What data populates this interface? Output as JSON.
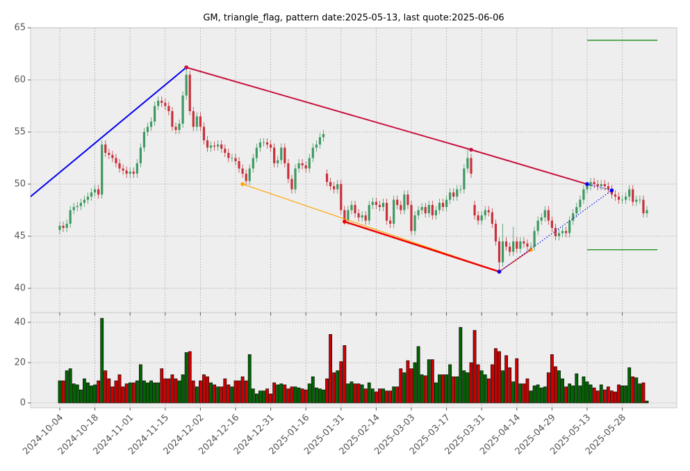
{
  "chart_data": [
    {
      "type": "candlestick",
      "title": "GM, triangle_flag, pattern date:2025-05-13, last quote:2025-06-06",
      "open": [
        45.6,
        46.0,
        45.8,
        46.2,
        47.5,
        47.8,
        47.9,
        48.2,
        48.5,
        48.8,
        49.2,
        49.5,
        49.0,
        53.8,
        53.0,
        52.8,
        52.5,
        52.0,
        51.5,
        51.3,
        51.0,
        51.2,
        51.0,
        52.0,
        53.5,
        55.0,
        55.5,
        56.0,
        57.5,
        58.0,
        57.8,
        57.5,
        57.0,
        55.5,
        55.2,
        55.8,
        58.5,
        60.5,
        57.0,
        55.5,
        56.5,
        55.5,
        54.2,
        53.5,
        53.7,
        53.6,
        53.8,
        53.4,
        53.0,
        52.5,
        52.5,
        52.2,
        51.5,
        51.0,
        50.3,
        51.5,
        52.5,
        53.5,
        54.0,
        54.0,
        53.8,
        53.5,
        52.0,
        52.3,
        53.5,
        52.0,
        50.5,
        49.5,
        51.5,
        52.0,
        51.8,
        51.5,
        52.5,
        53.5,
        53.8,
        54.5,
        51.0,
        50.2,
        49.8,
        49.5,
        50.0,
        47.5,
        46.5,
        47.5,
        48.0,
        47.2,
        46.8,
        47.0,
        46.5,
        48.0,
        48.3,
        48.0,
        47.8,
        48.2,
        46.5,
        46.2,
        48.5,
        48.0,
        47.5,
        49.0,
        48.0,
        45.5,
        47.0,
        47.5,
        47.8,
        47.2,
        48.0,
        47.0,
        47.5,
        48.2,
        47.8,
        48.5,
        49.2,
        48.8,
        49.5,
        49.5,
        51.5,
        52.5,
        48.0,
        47.0,
        46.5,
        47.0,
        47.5,
        47.3,
        46.2,
        44.5,
        42.5,
        44.5,
        44.0,
        43.5,
        44.5,
        43.8,
        44.5,
        44.3,
        44.0,
        44.0,
        45.5,
        46.5,
        46.8,
        47.5,
        46.5,
        45.8,
        45.0,
        45.3,
        45.5,
        45.3,
        46.5,
        47.2,
        47.8,
        48.5,
        49.5,
        49.8,
        50.2,
        50.0,
        49.8,
        50.0,
        49.8,
        49.5,
        49.0,
        48.8,
        48.5,
        48.5,
        48.8,
        49.5,
        48.3,
        48.5,
        48.5,
        47.2
      ],
      "high": [
        46.4,
        46.4,
        46.6,
        47.9,
        48.2,
        48.3,
        48.6,
        48.9,
        49.2,
        49.6,
        49.9,
        49.9,
        54.2,
        54.2,
        53.4,
        53.2,
        52.9,
        52.4,
        51.9,
        51.7,
        51.6,
        51.6,
        52.4,
        53.9,
        55.4,
        55.9,
        56.4,
        57.9,
        58.4,
        58.4,
        58.2,
        57.9,
        57.4,
        55.9,
        56.2,
        58.9,
        61.2,
        60.9,
        57.4,
        56.9,
        56.9,
        55.9,
        54.6,
        54.1,
        54.1,
        54.2,
        54.2,
        53.8,
        53.4,
        52.9,
        52.9,
        52.6,
        51.9,
        51.4,
        51.9,
        52.9,
        53.9,
        54.4,
        54.4,
        54.4,
        54.2,
        53.9,
        52.7,
        53.9,
        53.9,
        52.4,
        50.9,
        51.9,
        52.4,
        52.4,
        52.2,
        52.9,
        53.9,
        54.2,
        54.9,
        55.2,
        51.4,
        50.6,
        50.2,
        50.4,
        50.4,
        47.9,
        47.9,
        48.4,
        48.4,
        47.6,
        47.4,
        47.4,
        48.4,
        48.7,
        48.7,
        48.4,
        48.6,
        48.6,
        46.9,
        48.9,
        48.9,
        48.4,
        49.4,
        49.4,
        48.4,
        47.4,
        47.9,
        48.2,
        48.2,
        48.4,
        48.4,
        47.9,
        48.6,
        48.6,
        48.9,
        49.6,
        49.6,
        49.9,
        49.9,
        51.9,
        53.3,
        52.9,
        48.4,
        47.4,
        47.4,
        47.9,
        47.9,
        47.7,
        46.6,
        44.9,
        46.2,
        44.9,
        44.4,
        45.9,
        44.9,
        44.9,
        44.9,
        44.7,
        44.4,
        45.9,
        46.9,
        47.2,
        47.9,
        47.9,
        46.9,
        46.2,
        45.7,
        45.9,
        45.9,
        46.9,
        47.6,
        48.2,
        48.9,
        49.9,
        50.2,
        50.6,
        50.6,
        50.4,
        50.4,
        50.4,
        50.2,
        49.9,
        49.4,
        49.2,
        48.9,
        49.2,
        49.9,
        49.9,
        48.9,
        48.9,
        48.9,
        47.9
      ],
      "low": [
        45.2,
        45.4,
        45.4,
        45.8,
        47.1,
        47.4,
        47.5,
        47.8,
        48.1,
        48.4,
        48.8,
        48.6,
        48.6,
        52.6,
        52.4,
        52.1,
        51.6,
        51.1,
        50.9,
        50.6,
        50.6,
        50.6,
        50.6,
        51.6,
        53.1,
        54.6,
        55.1,
        55.6,
        57.1,
        57.4,
        57.1,
        56.6,
        55.1,
        54.8,
        54.8,
        55.4,
        58.1,
        56.6,
        55.1,
        55.1,
        55.1,
        53.8,
        53.1,
        53.1,
        53.2,
        53.2,
        53.0,
        52.6,
        52.1,
        52.1,
        51.8,
        51.1,
        50.6,
        49.9,
        49.9,
        51.1,
        52.1,
        53.1,
        53.6,
        53.4,
        53.1,
        51.6,
        51.6,
        51.9,
        51.6,
        50.1,
        49.1,
        49.1,
        51.1,
        51.4,
        51.1,
        51.1,
        52.1,
        53.1,
        53.4,
        54.1,
        49.8,
        49.4,
        49.1,
        49.1,
        47.1,
        46.1,
        46.1,
        47.1,
        46.8,
        46.4,
        46.4,
        46.1,
        46.1,
        47.6,
        47.6,
        47.4,
        47.4,
        46.1,
        45.8,
        45.8,
        47.6,
        47.1,
        47.1,
        47.6,
        45.1,
        45.1,
        46.6,
        47.1,
        46.8,
        46.8,
        46.6,
        46.6,
        47.1,
        47.4,
        47.4,
        48.1,
        48.4,
        48.4,
        49.1,
        49.1,
        51.1,
        50.6,
        46.6,
        46.1,
        46.1,
        46.6,
        46.9,
        45.8,
        44.1,
        41.6,
        42.1,
        43.6,
        43.1,
        43.1,
        43.4,
        43.4,
        43.9,
        43.6,
        43.6,
        43.6,
        45.1,
        46.1,
        46.4,
        46.1,
        45.4,
        44.6,
        44.6,
        44.9,
        44.9,
        44.9,
        46.1,
        46.8,
        47.4,
        48.1,
        49.1,
        49.4,
        49.6,
        49.4,
        49.4,
        49.4,
        49.1,
        48.6,
        48.4,
        48.1,
        48.1,
        48.1,
        48.4,
        47.9,
        47.9,
        48.1,
        46.8,
        46.8
      ],
      "close": [
        46.0,
        45.8,
        46.2,
        47.5,
        47.8,
        47.9,
        48.2,
        48.5,
        48.8,
        49.2,
        49.5,
        49.0,
        53.8,
        53.0,
        52.8,
        52.5,
        52.0,
        51.5,
        51.3,
        51.0,
        51.2,
        51.0,
        52.0,
        53.5,
        55.0,
        55.5,
        56.0,
        57.5,
        58.0,
        57.8,
        57.5,
        57.0,
        55.5,
        55.2,
        55.8,
        58.5,
        60.5,
        57.0,
        55.5,
        56.5,
        55.5,
        54.2,
        53.5,
        53.7,
        53.6,
        53.8,
        53.4,
        53.0,
        52.5,
        52.5,
        52.2,
        51.5,
        51.0,
        50.3,
        51.5,
        52.5,
        53.5,
        54.0,
        54.0,
        53.8,
        53.5,
        52.0,
        52.3,
        53.5,
        52.0,
        50.5,
        49.5,
        51.5,
        52.0,
        51.8,
        51.5,
        52.5,
        53.5,
        53.8,
        54.5,
        54.8,
        50.2,
        49.8,
        49.5,
        50.0,
        47.5,
        46.5,
        47.5,
        48.0,
        47.2,
        46.8,
        47.0,
        46.5,
        48.0,
        48.3,
        48.0,
        47.8,
        48.2,
        46.5,
        46.2,
        48.5,
        48.0,
        47.5,
        49.0,
        48.0,
        45.5,
        47.0,
        47.5,
        47.8,
        47.2,
        48.0,
        47.0,
        47.5,
        48.2,
        47.8,
        48.5,
        49.2,
        48.8,
        49.5,
        49.5,
        51.5,
        52.5,
        51.0,
        47.0,
        46.5,
        47.0,
        47.5,
        47.3,
        46.2,
        44.5,
        42.5,
        44.5,
        44.0,
        43.5,
        44.5,
        43.8,
        44.5,
        44.3,
        44.0,
        44.0,
        45.5,
        46.5,
        46.8,
        47.5,
        46.5,
        45.8,
        45.0,
        45.3,
        45.5,
        45.3,
        46.5,
        47.2,
        47.8,
        48.5,
        49.5,
        49.8,
        50.2,
        50.0,
        49.8,
        50.0,
        49.8,
        49.5,
        49.0,
        48.8,
        48.5,
        48.5,
        48.8,
        49.5,
        48.3,
        48.5,
        48.5,
        47.2,
        47.5
      ],
      "up_color": "#3d9960",
      "down_color": "#c8303a",
      "xlim": [
        -8.3,
        175.5
      ],
      "ylim": [
        37.67,
        65
      ],
      "yticks": [
        40,
        45,
        50,
        55,
        60,
        65
      ],
      "grid": true,
      "lines": [
        {
          "color": "#0000ee",
          "width": 2,
          "style": "solid",
          "marker": true,
          "x": [
            -10,
            36
          ],
          "y": [
            48.33,
            61.2
          ]
        },
        {
          "color": "#c8103e",
          "width": 2,
          "style": "solid",
          "marker": true,
          "x": [
            36,
            117,
            150
          ],
          "y": [
            61.2,
            53.3,
            50.0
          ]
        },
        {
          "color": "#ffa500",
          "width": 1.2,
          "style": "solid",
          "marker": true,
          "x": [
            52,
            125,
            134
          ],
          "y": [
            50.0,
            41.6,
            43.7
          ]
        },
        {
          "color": "#ee0000",
          "width": 2.5,
          "style": "solid",
          "marker": true,
          "x": [
            81,
            125
          ],
          "y": [
            46.4,
            41.6
          ]
        },
        {
          "color": "#ee0000",
          "width": 1,
          "style": "solid",
          "marker": false,
          "x": [
            125,
            134
          ],
          "y": [
            41.6,
            43.7
          ]
        },
        {
          "color": "#0000ee",
          "width": 1.2,
          "style": "dotted",
          "marker": true,
          "x": [
            125,
            157,
            150
          ],
          "y": [
            41.6,
            49.4,
            50.0
          ]
        },
        {
          "color": "#008000",
          "width": 1.2,
          "style": "solid",
          "marker": false,
          "x": [
            150,
            170
          ],
          "y": [
            63.8,
            63.8
          ]
        },
        {
          "color": "#008000",
          "width": 1.2,
          "style": "solid",
          "marker": false,
          "x": [
            150,
            170
          ],
          "y": [
            43.7,
            43.7
          ]
        }
      ]
    },
    {
      "type": "volume",
      "categories": [
        "2024-10-04",
        null,
        null,
        null,
        null,
        null,
        null,
        null,
        null,
        null,
        "2024-10-18",
        null,
        null,
        null,
        null,
        null,
        null,
        null,
        null,
        null,
        "2024-11-01",
        null,
        null,
        null,
        null,
        null,
        null,
        null,
        null,
        null,
        "2024-11-15",
        null,
        null,
        null,
        null,
        null,
        null,
        null,
        null,
        null,
        "2024-12-02",
        null,
        null,
        null,
        null,
        null,
        null,
        null,
        null,
        null,
        "2024-12-16",
        null,
        null,
        null,
        null,
        null,
        null,
        null,
        null,
        null,
        "2024-12-31",
        null,
        null,
        null,
        null,
        null,
        null,
        null,
        null,
        null,
        "2025-01-16",
        null,
        null,
        null,
        null,
        null,
        null,
        null,
        null,
        null,
        "2025-01-31",
        null,
        null,
        null,
        null,
        null,
        null,
        null,
        null,
        null,
        "2025-02-14",
        null,
        null,
        null,
        null,
        null,
        null,
        null,
        null,
        null,
        "2025-03-03",
        null,
        null,
        null,
        null,
        null,
        null,
        null,
        null,
        null,
        "2025-03-17",
        null,
        null,
        null,
        null,
        null,
        null,
        null,
        null,
        null,
        "2025-03-31",
        null,
        null,
        null,
        null,
        null,
        null,
        null,
        null,
        null,
        "2025-04-14",
        null,
        null,
        null,
        null,
        null,
        null,
        null,
        null,
        null,
        "2025-04-29",
        null,
        null,
        null,
        null,
        null,
        null,
        null,
        null,
        null,
        "2025-05-13",
        null,
        null,
        null,
        null,
        null,
        null,
        null,
        null,
        null,
        "2025-05-28",
        null,
        null,
        null,
        null,
        null,
        null,
        null
      ],
      "values": [
        11,
        11,
        16,
        17,
        9.5,
        9,
        6.5,
        12,
        10,
        8.5,
        9,
        11,
        42,
        16,
        12,
        8,
        11,
        14,
        8,
        9.5,
        10,
        10,
        11,
        19,
        11,
        10,
        11,
        10,
        10,
        17,
        12,
        12,
        14,
        12,
        11,
        14,
        25,
        25.5,
        11,
        8,
        11,
        14,
        13,
        10,
        9,
        8,
        8,
        12,
        9,
        8,
        11,
        11,
        13,
        11,
        24,
        7,
        4.5,
        6,
        6,
        7,
        4.5,
        10,
        9,
        9.5,
        9,
        7,
        8,
        8,
        7.5,
        7,
        6.5,
        9.5,
        13,
        7.5,
        7,
        6.5,
        12,
        34,
        15,
        16,
        20.5,
        28.5,
        9.5,
        10.5,
        9.5,
        9.5,
        9,
        7,
        10,
        7,
        5.5,
        7,
        7,
        6,
        6,
        8,
        8,
        17,
        15,
        21,
        17,
        20,
        28,
        14,
        13.5,
        21.5,
        21.5,
        10,
        14,
        14,
        14,
        19,
        13,
        13,
        37.5,
        16,
        15,
        20,
        36,
        19,
        16,
        14,
        12,
        19,
        27,
        25.5,
        16,
        23.5,
        17.5,
        10.5,
        22,
        9.5,
        9.5,
        12,
        6,
        8.5,
        9,
        7.5,
        8,
        15,
        24,
        18,
        16,
        12,
        8,
        9.5,
        8.5,
        14.5,
        8.5,
        13,
        10.5,
        9,
        7.5,
        6,
        9,
        6.5,
        8,
        6,
        5.5,
        9,
        8.5,
        8.5,
        17.5,
        13,
        12.5,
        9.5,
        10,
        1
      ],
      "up_color": "#006400",
      "down_color": "#cc0000",
      "xlim": [
        -8.3,
        175.5
      ],
      "ylim": [
        -2.4,
        44.8
      ],
      "yticks": [
        0,
        20,
        40
      ],
      "grid": true
    }
  ]
}
